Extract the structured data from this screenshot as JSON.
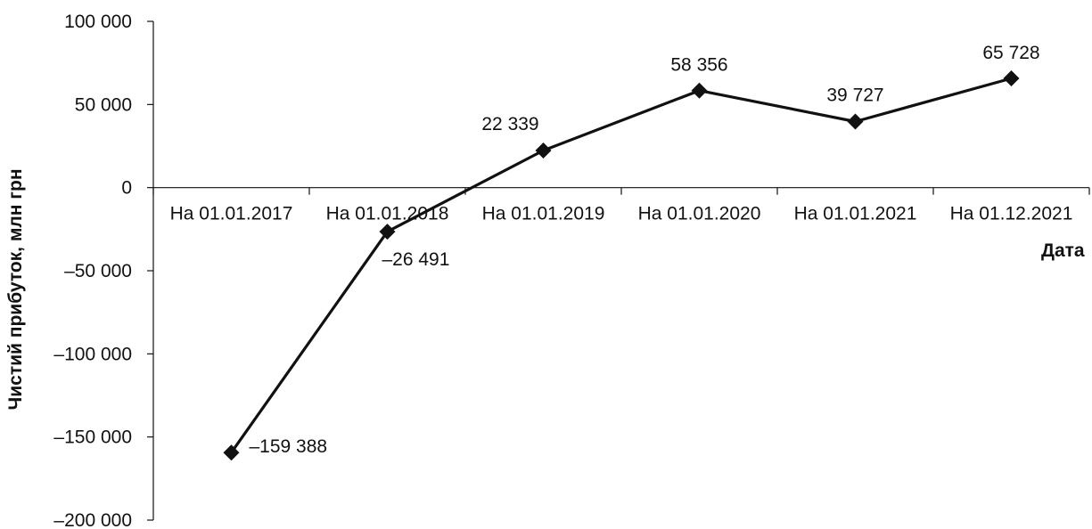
{
  "chart_data": {
    "type": "line",
    "xlabel": "Дата",
    "ylabel": "Чистий прибуток, млн грн",
    "categories": [
      "На 01.01.2017",
      "На 01.01.2018",
      "На 01.01.2019",
      "На 01.01.2020",
      "На 01.01.2021",
      "На 01.12.2021"
    ],
    "values": [
      -159388,
      -26491,
      22339,
      58356,
      39727,
      65728
    ],
    "data_labels": [
      "–159 388",
      "–26 491",
      "22 339",
      "58 356",
      "39 727",
      "65 728"
    ],
    "yticks": [
      100000,
      50000,
      0,
      -50000,
      -100000,
      -150000,
      -200000
    ],
    "ytick_labels": [
      "100 000",
      "50 000",
      "0",
      "–50 000",
      "–100 000",
      "–150 000",
      "–200 000"
    ],
    "ylim": [
      -200000,
      100000
    ],
    "marker": "diamond",
    "series_color": "#111111",
    "grid": false,
    "legend": false
  }
}
